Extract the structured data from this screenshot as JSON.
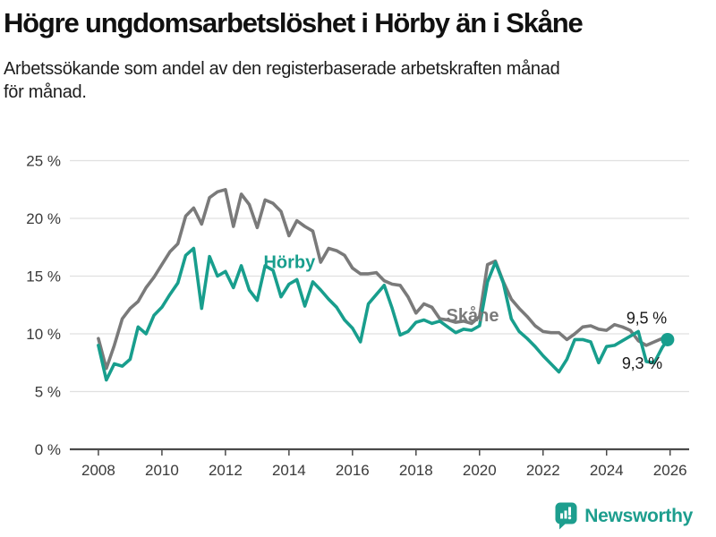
{
  "header": {
    "title": "Högre ungdomsarbetslöshet i Hörby än i Skåne",
    "subtitle": "Arbetssökande som andel av den registerbaserade arbetskraften månad\nför månad."
  },
  "chart_data": {
    "type": "line",
    "title": "Högre ungdomsarbetslöshet i Hörby än i Skåne",
    "subtitle": "Arbetssökande som andel av den registerbaserade arbetskraften månad för månad.",
    "x_unit": "decimal_year",
    "grid": "horizontal",
    "xlim": [
      2007.1,
      2026.6
    ],
    "ylim": [
      0,
      25
    ],
    "x_ticks": [
      {
        "value": 2008,
        "label": "2008"
      },
      {
        "value": 2010,
        "label": "2010"
      },
      {
        "value": 2012,
        "label": "2012"
      },
      {
        "value": 2014,
        "label": "2014"
      },
      {
        "value": 2016,
        "label": "2016"
      },
      {
        "value": 2018,
        "label": "2018"
      },
      {
        "value": 2020,
        "label": "2020"
      },
      {
        "value": 2022,
        "label": "2022"
      },
      {
        "value": 2024,
        "label": "2024"
      },
      {
        "value": 2026,
        "label": "2026"
      }
    ],
    "y_ticks": [
      {
        "value": 0,
        "label": "0 %"
      },
      {
        "value": 5,
        "label": "5 %"
      },
      {
        "value": 10,
        "label": "10 %"
      },
      {
        "value": 15,
        "label": "15 %"
      },
      {
        "value": 20,
        "label": "20 %"
      },
      {
        "value": 25,
        "label": "25 %"
      }
    ],
    "x": [
      2008,
      2008.25,
      2008.5,
      2008.75,
      2009,
      2009.25,
      2009.5,
      2009.75,
      2010,
      2010.25,
      2010.5,
      2010.75,
      2011,
      2011.25,
      2011.5,
      2011.75,
      2012,
      2012.25,
      2012.5,
      2012.75,
      2013,
      2013.25,
      2013.5,
      2013.75,
      2014,
      2014.25,
      2014.5,
      2014.75,
      2015,
      2015.25,
      2015.5,
      2015.75,
      2016,
      2016.25,
      2016.5,
      2016.75,
      2017,
      2017.25,
      2017.5,
      2017.75,
      2018,
      2018.25,
      2018.5,
      2018.75,
      2019,
      2019.25,
      2019.5,
      2019.75,
      2020,
      2020.25,
      2020.5,
      2020.75,
      2021,
      2021.25,
      2021.5,
      2021.75,
      2022,
      2022.25,
      2022.5,
      2022.75,
      2023,
      2023.25,
      2023.5,
      2023.75,
      2024,
      2024.25,
      2024.5,
      2024.75,
      2025,
      2025.25,
      2025.5,
      2025.75,
      2025.92
    ],
    "series": [
      {
        "name": "Hörby",
        "color": "#189E8D",
        "end_label": "9,5 %",
        "end_value": 9.5,
        "end_dot": true,
        "label_at": {
          "x": 2013.2,
          "y": 15.7
        },
        "values": [
          9.0,
          6.0,
          7.4,
          7.2,
          7.8,
          10.6,
          10.0,
          11.6,
          12.3,
          13.4,
          14.4,
          16.8,
          17.4,
          12.2,
          16.7,
          15.0,
          15.4,
          14.0,
          15.9,
          13.8,
          12.9,
          15.9,
          15.5,
          13.2,
          14.3,
          14.7,
          12.4,
          14.5,
          13.8,
          13.0,
          12.3,
          11.2,
          10.5,
          9.3,
          12.6,
          13.4,
          14.2,
          12.2,
          9.9,
          10.2,
          11.0,
          11.2,
          10.9,
          11.1,
          10.6,
          10.1,
          10.4,
          10.3,
          10.7,
          14.5,
          16.2,
          14.4,
          11.3,
          10.2,
          9.6,
          8.9,
          8.1,
          7.4,
          6.7,
          7.8,
          9.5,
          9.5,
          9.3,
          7.5,
          8.9,
          9.0,
          9.4,
          9.8,
          10.2,
          7.6,
          7.5,
          8.8,
          9.5
        ]
      },
      {
        "name": "Skåne",
        "color": "#7A7A7A",
        "end_label": "9,3 %",
        "end_value": 9.3,
        "end_dot": false,
        "label_at": {
          "x": 2018.95,
          "y": 11.1
        },
        "values": [
          9.6,
          7.0,
          9.0,
          11.3,
          12.2,
          12.8,
          14.0,
          14.9,
          16.0,
          17.1,
          17.8,
          20.2,
          20.9,
          19.5,
          21.8,
          22.3,
          22.5,
          19.3,
          22.1,
          21.2,
          19.2,
          21.6,
          21.3,
          20.6,
          18.5,
          19.8,
          19.3,
          18.9,
          16.2,
          17.4,
          17.2,
          16.8,
          15.7,
          15.2,
          15.2,
          15.3,
          14.6,
          14.3,
          14.2,
          13.2,
          11.8,
          12.6,
          12.3,
          11.3,
          11.2,
          11.0,
          11.1,
          10.9,
          11.5,
          16.0,
          16.3,
          14.5,
          13.0,
          12.2,
          11.5,
          10.7,
          10.2,
          10.1,
          10.1,
          9.5,
          10.0,
          10.6,
          10.7,
          10.4,
          10.3,
          10.8,
          10.6,
          10.3,
          9.4,
          9.0,
          9.3,
          9.6,
          9.3
        ]
      }
    ]
  },
  "footer": {
    "brand": "Newsworthy",
    "brand_color": "#1D9E8E",
    "logo_icon": "bar-chart-speech-bubble"
  }
}
